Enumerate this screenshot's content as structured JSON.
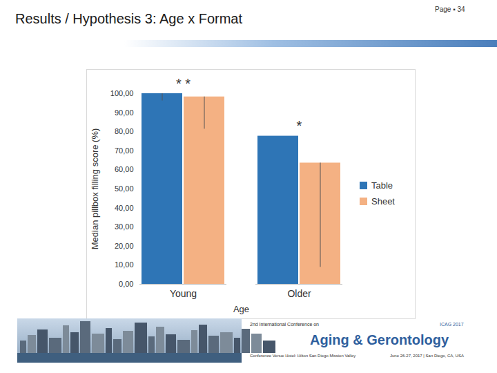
{
  "header": {
    "title": "Results / Hypothesis 3: Age x Format",
    "page": "Page ▪ 34"
  },
  "chart_data": {
    "type": "bar",
    "categories": [
      "Young",
      "Older"
    ],
    "series": [
      {
        "name": "Table",
        "color": "#2e75b6",
        "values": [
          100,
          77.7
        ],
        "error_low": [
          96.2,
          null
        ],
        "error_high": [
          100,
          null
        ]
      },
      {
        "name": "Sheet",
        "color": "#f4b183",
        "values": [
          98.3,
          63.6
        ],
        "error_low": [
          81.4,
          8.9
        ],
        "error_high": [
          98.3,
          63.6
        ]
      }
    ],
    "xlabel": "Age",
    "ylabel": "Median pillbox filling score (%)",
    "ylim": [
      0,
      100
    ],
    "yticks": [
      {
        "value": 0,
        "label": "0,00"
      },
      {
        "value": 10,
        "label": "10,00"
      },
      {
        "value": 20,
        "label": "20,00"
      },
      {
        "value": 30,
        "label": "30,00"
      },
      {
        "value": 40,
        "label": "40,00"
      },
      {
        "value": 50,
        "label": "50,00"
      },
      {
        "value": 60,
        "label": "60,00"
      },
      {
        "value": 70,
        "label": "70,00"
      },
      {
        "value": 80,
        "label": "80,00"
      },
      {
        "value": 90,
        "label": "90,00"
      },
      {
        "value": 100,
        "label": "100,00"
      }
    ],
    "grid": false,
    "legend": "right",
    "annotations": [
      {
        "text": "* *",
        "category": "Young"
      },
      {
        "text": "*",
        "category": "Older"
      }
    ]
  },
  "footer": {
    "line1": "2nd International Conference on",
    "line2": "Aging & Gerontology",
    "line3": "Conference Venue Hotel: Hilton San Diego Mission Valley",
    "line4": "June 26-27, 2017 | San Diego, CA, USA",
    "badge": "ICAG 2017"
  }
}
